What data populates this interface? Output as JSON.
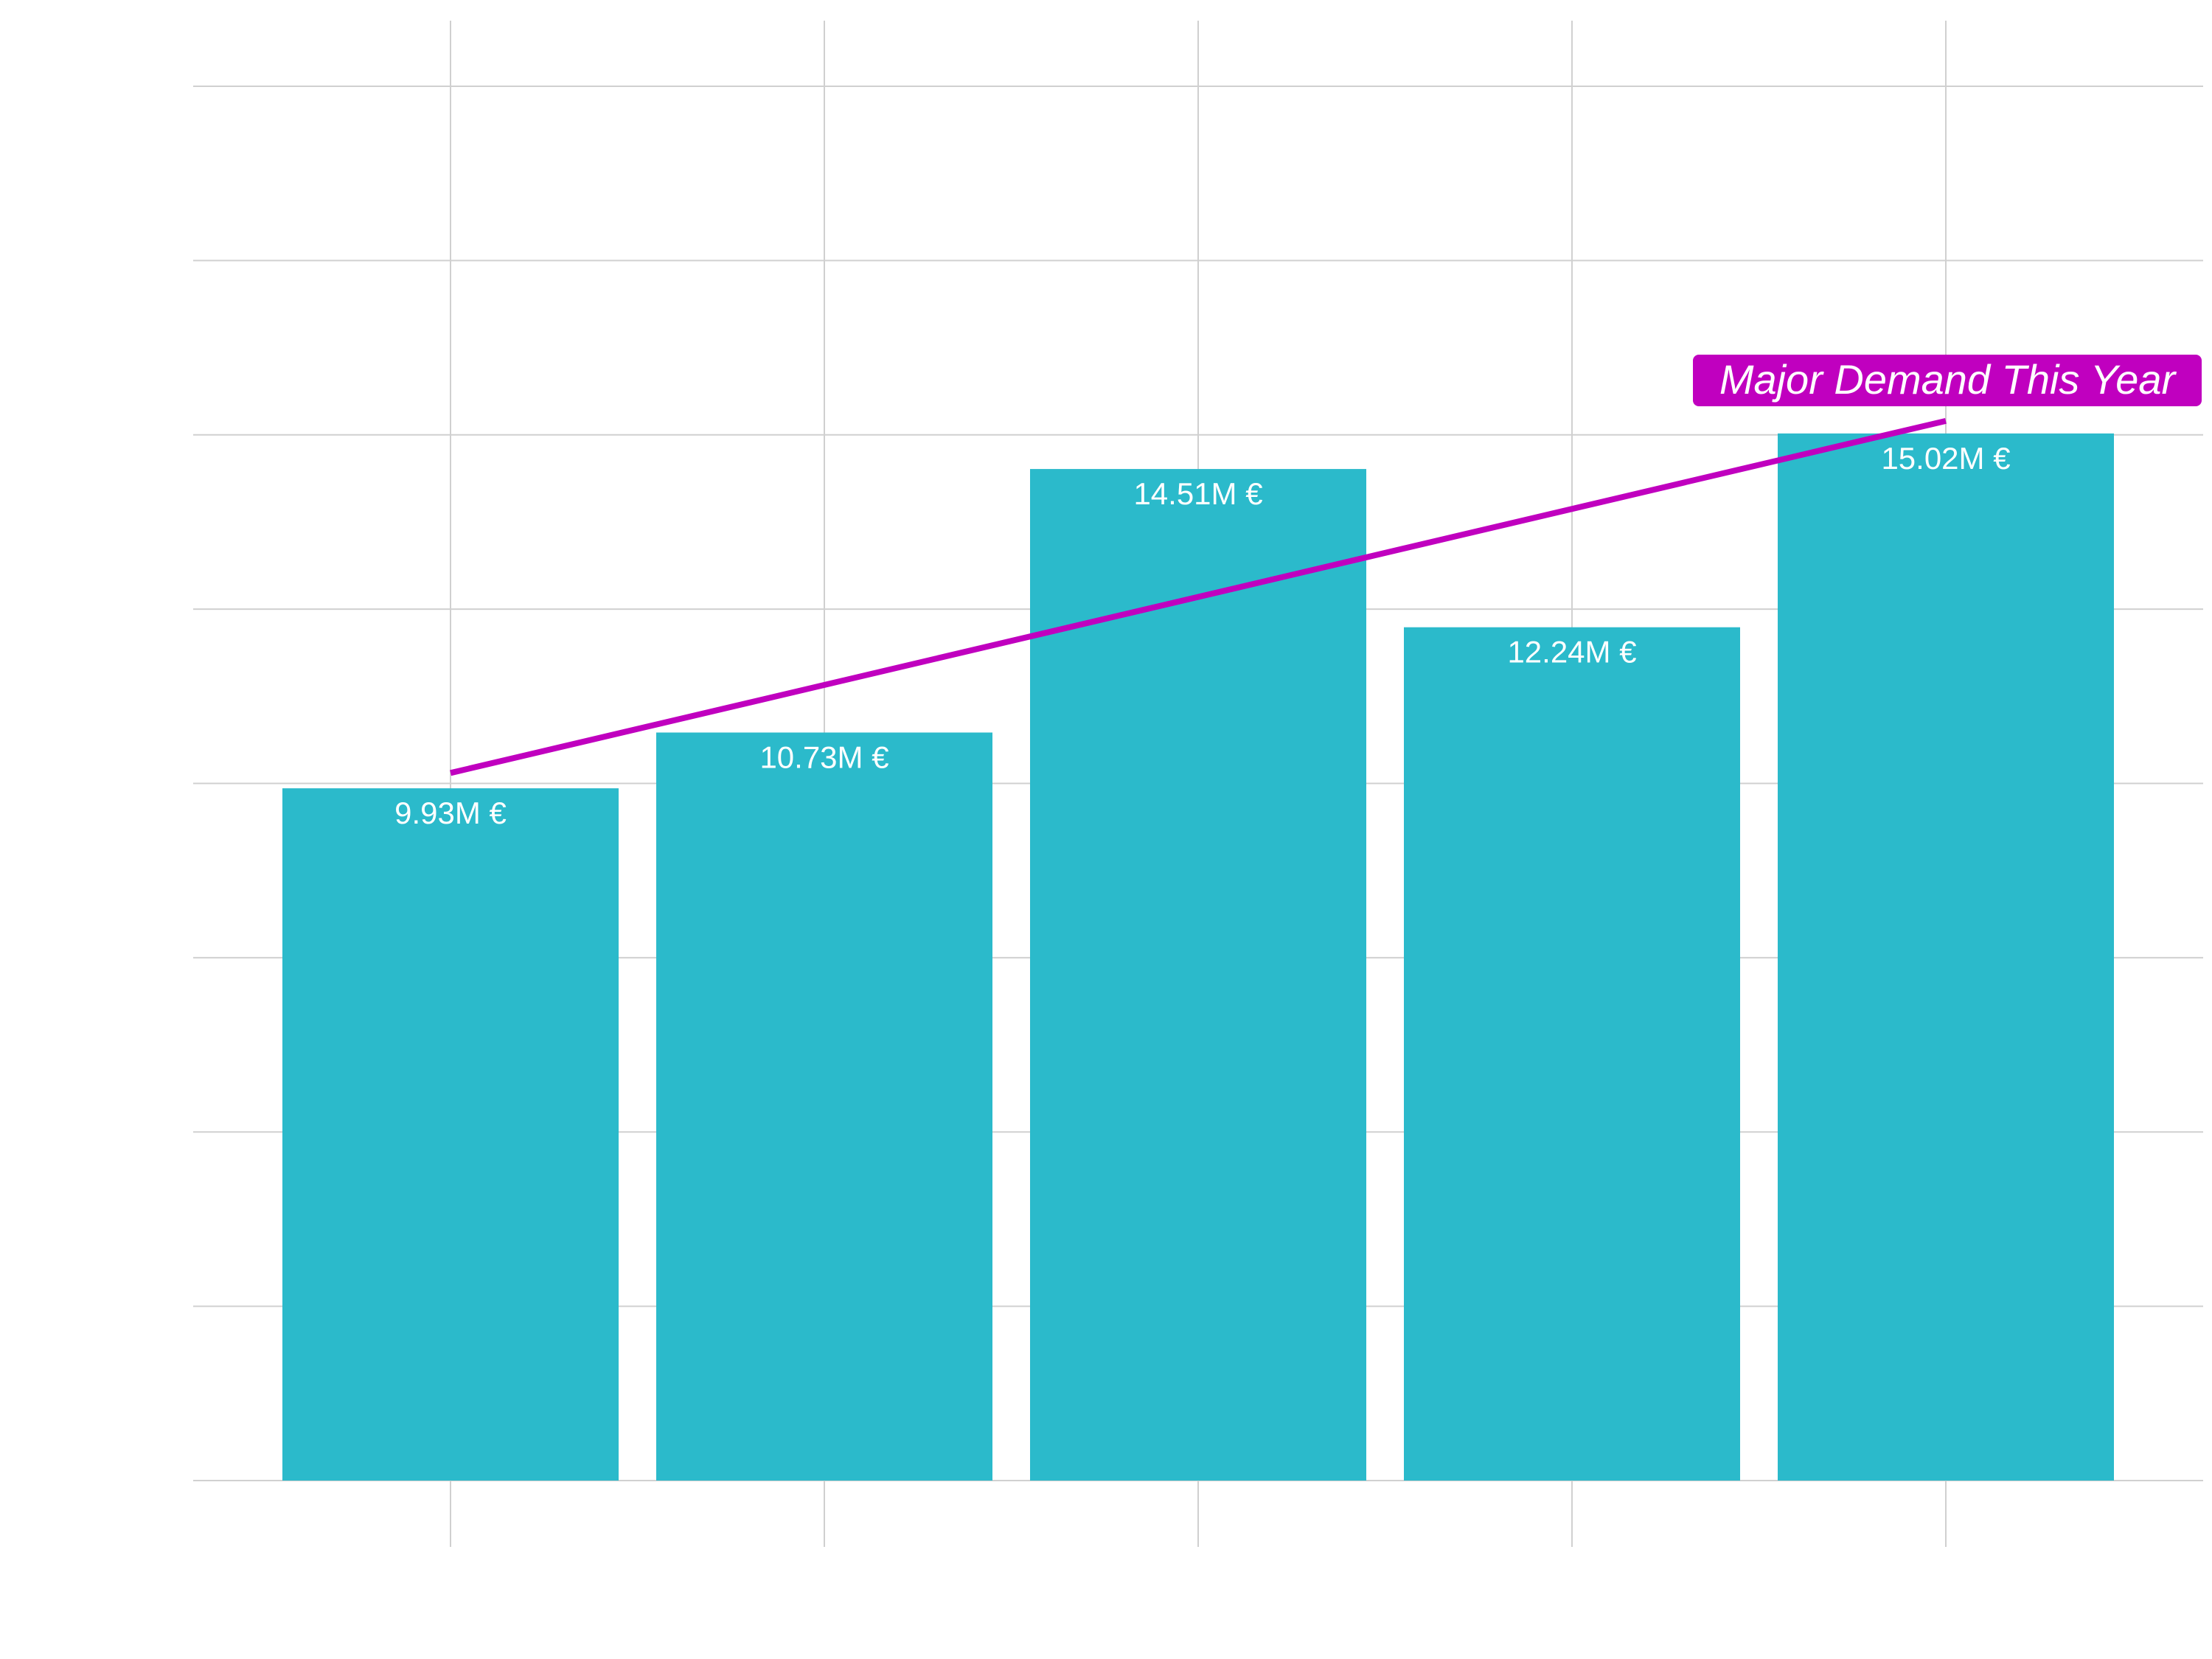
{
  "chart_data": {
    "type": "bar",
    "categories": [
      "",
      "",
      "",
      "",
      ""
    ],
    "values": [
      9.93,
      10.73,
      14.51,
      12.24,
      15.02
    ],
    "value_labels": [
      "9.93M €",
      "10.73M €",
      "14.51M €",
      "12.24M €",
      "15.02M €"
    ],
    "ylim": [
      0,
      20
    ],
    "y_gridlines": [
      0,
      2.5,
      5,
      7.5,
      10,
      12.5,
      15,
      17.5,
      20
    ],
    "grid": true,
    "trend_line": {
      "from": {
        "category_index": 0,
        "y": 10.15
      },
      "to": {
        "category_index": 4,
        "y": 15.2
      }
    },
    "annotation": {
      "text": "Major Demand This Year",
      "category_index": 4
    },
    "colors": {
      "bar": "#2bbacb",
      "trend": "#c000bf",
      "grid": "#d0d0d0",
      "label": "#ffffff",
      "annotation_bg": "#c000bf",
      "annotation_text": "#ffffff"
    }
  }
}
